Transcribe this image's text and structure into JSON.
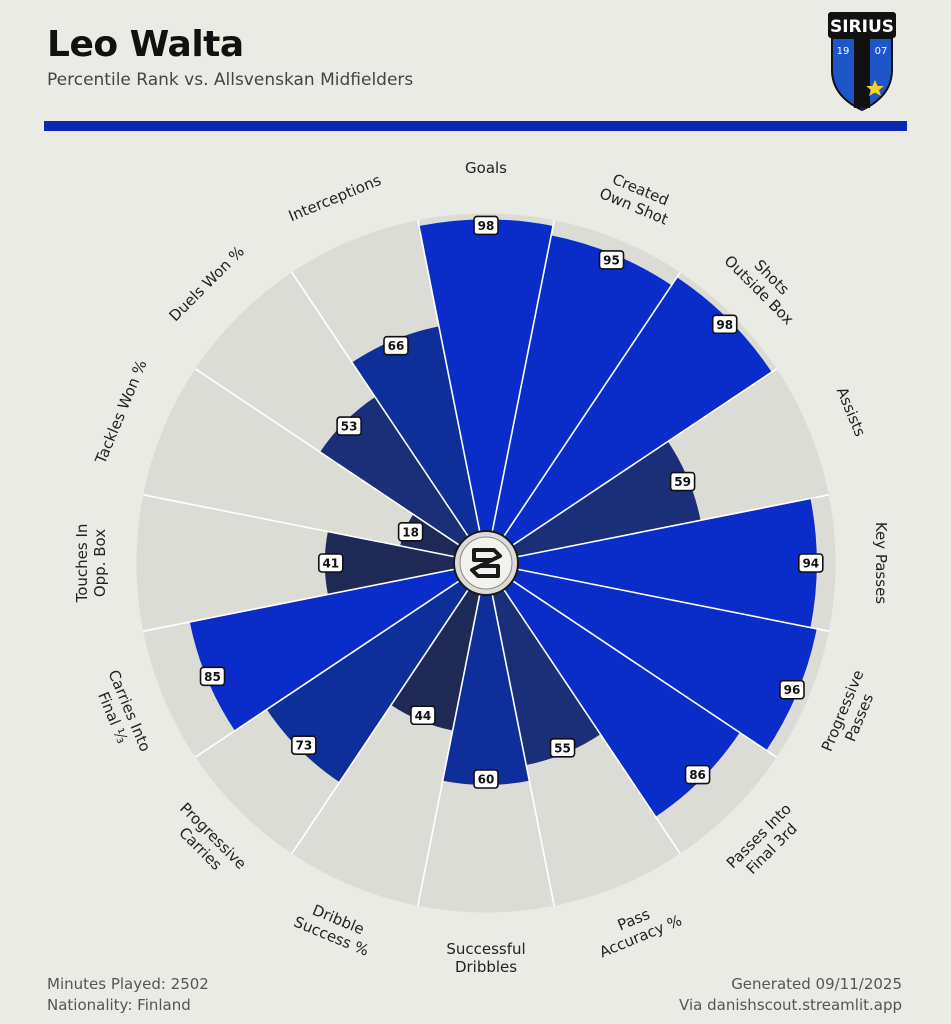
{
  "header": {
    "title": "Leo Walta",
    "subtitle": "Percentile Rank vs. Allsvenskan Midfielders"
  },
  "crest": {
    "name": "SIRIUS",
    "year_left": "19",
    "year_right": "07",
    "colors": {
      "blue": "#1d56c8",
      "black": "#111111",
      "star": "#f4d21f"
    }
  },
  "footer": {
    "minutes": "Minutes Played: 2502",
    "nationality": "Nationality: Finland",
    "generated": "Generated 09/11/2025",
    "via": "Via danishscout.streamlit.app"
  },
  "colors": {
    "background": "#ebebe5",
    "slice_background": "#dcdcd6",
    "accent": "#0a28b4",
    "high": "#0a2cc8",
    "mid": "#0e2f9a",
    "low": "#1a2f78",
    "lowest": "#1e2a55"
  },
  "chart_data": {
    "type": "polar-bar",
    "range": [
      0,
      100
    ],
    "categories": [
      [
        "Goals"
      ],
      [
        "Created",
        "Own Shot"
      ],
      [
        "Shots",
        "Outside Box"
      ],
      [
        "Assists"
      ],
      [
        "Key Passes"
      ],
      [
        "Progressive",
        "Passes"
      ],
      [
        "Passes Into",
        "Final 3rd"
      ],
      [
        "Pass",
        "Accuracy %"
      ],
      [
        "Successful",
        "Dribbles"
      ],
      [
        "Dribble",
        "Success %"
      ],
      [
        "Progressive",
        "Carries"
      ],
      [
        "Carries Into",
        "Final ⅓"
      ],
      [
        "Touches In",
        "Opp. Box"
      ],
      [
        "Tackles Won %"
      ],
      [
        "Duels Won %"
      ],
      [
        "Interceptions"
      ]
    ],
    "values": [
      98,
      95,
      98,
      59,
      94,
      96,
      86,
      55,
      60,
      44,
      73,
      85,
      41,
      18,
      53,
      66
    ],
    "value_labels": [
      "98",
      "95",
      "98",
      "59",
      "94",
      "96",
      "86",
      "55",
      "60",
      "44",
      "73",
      "85",
      "41",
      "18",
      "53",
      "66"
    ]
  }
}
